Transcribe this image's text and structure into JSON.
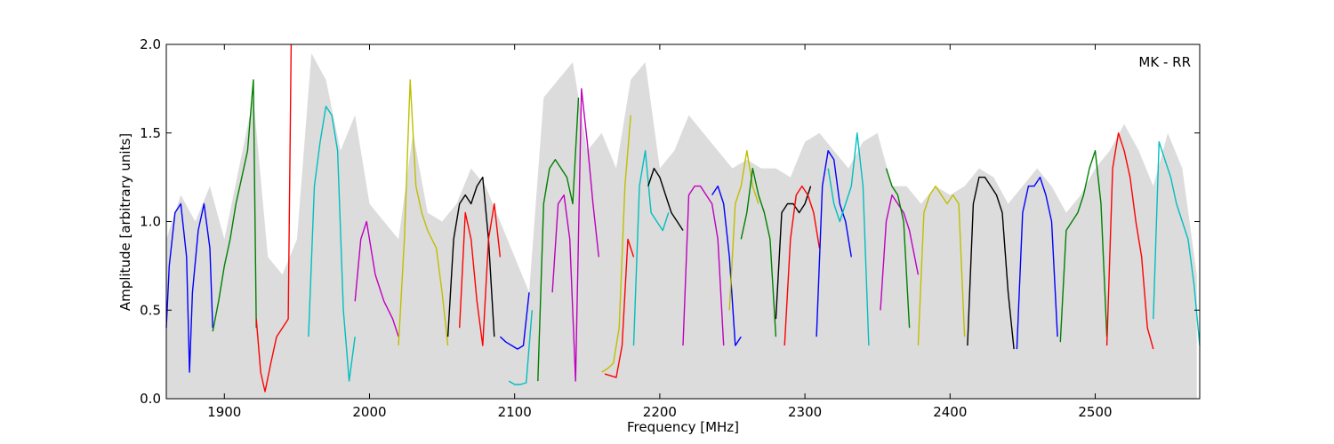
{
  "chart_data": {
    "type": "line",
    "title": "",
    "annotation": "MK - RR",
    "xlabel": "Frequency [MHz]",
    "ylabel": "Amplitude [arbitrary units]",
    "xlim": [
      1860,
      2572
    ],
    "ylim": [
      0.0,
      2.0
    ],
    "xticks": [
      1900,
      2000,
      2100,
      2200,
      2300,
      2400,
      2500
    ],
    "xtick_labels": [
      "1900",
      "2000",
      "2100",
      "2200",
      "2300",
      "2400",
      "2500"
    ],
    "yticks": [
      0.0,
      0.5,
      1.0,
      1.5,
      2.0
    ],
    "ytick_labels": [
      "0.0",
      "0.5",
      "1.0",
      "1.5",
      "2.0"
    ],
    "grid": false,
    "background_envelope_color": "#bfbfbf",
    "series": [
      {
        "color": "#0000ff",
        "x": [
          1860,
          1862,
          1866,
          1870,
          1874,
          1876,
          1878,
          1882,
          1886,
          1890,
          1892
        ],
        "y": [
          0.4,
          0.75,
          1.05,
          1.1,
          0.8,
          0.15,
          0.6,
          0.95,
          1.1,
          0.85,
          0.4
        ]
      },
      {
        "color": "#008000",
        "x": [
          1892,
          1896,
          1900,
          1904,
          1908,
          1912,
          1916,
          1920,
          1922
        ],
        "y": [
          0.38,
          0.55,
          0.75,
          0.9,
          1.1,
          1.25,
          1.4,
          1.8,
          0.4
        ]
      },
      {
        "color": "#ff0000",
        "x": [
          1922,
          1925,
          1928,
          1932,
          1936,
          1940,
          1944,
          1946
        ],
        "y": [
          0.45,
          0.15,
          0.04,
          0.2,
          0.35,
          0.4,
          0.45,
          2.0
        ]
      },
      {
        "color": "#00bfbf",
        "x": [
          1958,
          1962,
          1966,
          1970,
          1974,
          1978,
          1982,
          1986,
          1990
        ],
        "y": [
          0.35,
          1.2,
          1.45,
          1.65,
          1.6,
          1.4,
          0.5,
          0.1,
          0.35
        ]
      },
      {
        "color": "#bf00bf",
        "x": [
          1990,
          1994,
          1998,
          2004,
          2010,
          2016,
          2020
        ],
        "y": [
          0.55,
          0.9,
          1.0,
          0.7,
          0.55,
          0.45,
          0.35
        ]
      },
      {
        "color": "#bfbf00",
        "x": [
          2020,
          2024,
          2028,
          2032,
          2036,
          2040,
          2046,
          2050,
          2054
        ],
        "y": [
          0.3,
          0.9,
          1.8,
          1.2,
          1.05,
          0.95,
          0.85,
          0.6,
          0.3
        ]
      },
      {
        "color": "#000000",
        "x": [
          2054,
          2058,
          2062,
          2066,
          2070,
          2074,
          2078,
          2082,
          2086
        ],
        "y": [
          0.35,
          0.9,
          1.1,
          1.15,
          1.1,
          1.2,
          1.25,
          0.9,
          0.35
        ]
      },
      {
        "color": "#ff0000",
        "x": [
          2062,
          2066,
          2070,
          2074,
          2078,
          2082,
          2086,
          2090
        ],
        "y": [
          0.4,
          1.05,
          0.9,
          0.55,
          0.3,
          0.9,
          1.1,
          0.8
        ]
      },
      {
        "color": "#0000ff",
        "x": [
          2090,
          2094,
          2098,
          2102,
          2106,
          2110
        ],
        "y": [
          0.35,
          0.32,
          0.3,
          0.28,
          0.3,
          0.6
        ]
      },
      {
        "color": "#00bfbf",
        "x": [
          2096,
          2100,
          2104,
          2108,
          2112
        ],
        "y": [
          0.1,
          0.08,
          0.08,
          0.09,
          0.5
        ]
      },
      {
        "color": "#008000",
        "x": [
          2116,
          2120,
          2124,
          2128,
          2132,
          2136,
          2140,
          2144
        ],
        "y": [
          0.1,
          1.1,
          1.3,
          1.35,
          1.3,
          1.25,
          1.1,
          1.7
        ]
      },
      {
        "color": "#bf00bf",
        "x": [
          2126,
          2130,
          2134,
          2138,
          2142,
          2146,
          2150,
          2154,
          2158
        ],
        "y": [
          0.6,
          1.1,
          1.15,
          0.9,
          0.1,
          1.75,
          1.45,
          1.1,
          0.8
        ]
      },
      {
        "color": "#bfbf00",
        "x": [
          2160,
          2164,
          2168,
          2172,
          2176,
          2180
        ],
        "y": [
          0.15,
          0.17,
          0.2,
          0.4,
          1.2,
          1.6
        ]
      },
      {
        "color": "#ff0000",
        "x": [
          2162,
          2166,
          2170,
          2174,
          2178,
          2182
        ],
        "y": [
          0.14,
          0.13,
          0.12,
          0.3,
          0.9,
          0.8
        ]
      },
      {
        "color": "#00bfbf",
        "x": [
          2182,
          2186,
          2190,
          2194,
          2198,
          2202,
          2206
        ],
        "y": [
          0.3,
          1.2,
          1.4,
          1.05,
          1.0,
          0.95,
          1.05
        ]
      },
      {
        "color": "#000000",
        "x": [
          2192,
          2196,
          2200,
          2204,
          2208,
          2212,
          2216
        ],
        "y": [
          1.2,
          1.3,
          1.25,
          1.15,
          1.05,
          1.0,
          0.95
        ]
      },
      {
        "color": "#bf00bf",
        "x": [
          2216,
          2220,
          2224,
          2228,
          2232,
          2236,
          2240,
          2244
        ],
        "y": [
          0.3,
          1.15,
          1.2,
          1.2,
          1.15,
          1.1,
          0.9,
          0.3
        ]
      },
      {
        "color": "#0000ff",
        "x": [
          2236,
          2240,
          2244,
          2248,
          2252,
          2256
        ],
        "y": [
          1.15,
          1.2,
          1.1,
          0.8,
          0.3,
          0.35
        ]
      },
      {
        "color": "#bfbf00",
        "x": [
          2248,
          2252,
          2256,
          2260,
          2264,
          2268
        ],
        "y": [
          0.5,
          1.1,
          1.2,
          1.4,
          1.2,
          1.1
        ]
      },
      {
        "color": "#008000",
        "x": [
          2256,
          2260,
          2264,
          2268,
          2272,
          2276,
          2280
        ],
        "y": [
          0.9,
          1.05,
          1.3,
          1.15,
          1.05,
          0.9,
          0.35
        ]
      },
      {
        "color": "#000000",
        "x": [
          2280,
          2284,
          2288,
          2292,
          2296,
          2300,
          2304
        ],
        "y": [
          0.45,
          1.05,
          1.1,
          1.1,
          1.05,
          1.1,
          1.2
        ]
      },
      {
        "color": "#ff0000",
        "x": [
          2286,
          2290,
          2294,
          2298,
          2302,
          2306,
          2310
        ],
        "y": [
          0.3,
          0.9,
          1.15,
          1.2,
          1.15,
          1.05,
          0.85
        ]
      },
      {
        "color": "#0000ff",
        "x": [
          2308,
          2312,
          2316,
          2320,
          2324,
          2328,
          2332
        ],
        "y": [
          0.35,
          1.2,
          1.4,
          1.35,
          1.1,
          1.0,
          0.8
        ]
      },
      {
        "color": "#00bfbf",
        "x": [
          2316,
          2320,
          2324,
          2328,
          2332,
          2336,
          2340,
          2344
        ],
        "y": [
          1.3,
          1.1,
          1.0,
          1.1,
          1.2,
          1.5,
          1.2,
          0.3
        ]
      },
      {
        "color": "#bf00bf",
        "x": [
          2352,
          2356,
          2360,
          2364,
          2368,
          2372,
          2378
        ],
        "y": [
          0.5,
          1.0,
          1.15,
          1.1,
          1.05,
          0.95,
          0.7
        ]
      },
      {
        "color": "#008000",
        "x": [
          2356,
          2360,
          2364,
          2368,
          2372
        ],
        "y": [
          1.3,
          1.2,
          1.15,
          1.0,
          0.4
        ]
      },
      {
        "color": "#bfbf00",
        "x": [
          2378,
          2382,
          2386,
          2390,
          2394,
          2398,
          2402,
          2406,
          2410
        ],
        "y": [
          0.3,
          1.05,
          1.15,
          1.2,
          1.15,
          1.1,
          1.15,
          1.1,
          0.35
        ]
      },
      {
        "color": "#000000",
        "x": [
          2412,
          2416,
          2420,
          2424,
          2428,
          2432,
          2436,
          2440,
          2444
        ],
        "y": [
          0.3,
          1.1,
          1.25,
          1.25,
          1.2,
          1.15,
          1.05,
          0.6,
          0.28
        ]
      },
      {
        "color": "#0000ff",
        "x": [
          2446,
          2450,
          2454,
          2458,
          2462,
          2466,
          2470,
          2474
        ],
        "y": [
          0.28,
          1.05,
          1.2,
          1.2,
          1.25,
          1.15,
          1.0,
          0.35
        ]
      },
      {
        "color": "#008000",
        "x": [
          2476,
          2480,
          2484,
          2488,
          2492,
          2496,
          2500,
          2504,
          2508
        ],
        "y": [
          0.32,
          0.95,
          1.0,
          1.05,
          1.15,
          1.3,
          1.4,
          1.1,
          0.35
        ]
      },
      {
        "color": "#ff0000",
        "x": [
          2508,
          2512,
          2516,
          2520,
          2524,
          2528,
          2532,
          2536,
          2540
        ],
        "y": [
          0.3,
          1.3,
          1.5,
          1.4,
          1.25,
          1.0,
          0.8,
          0.4,
          0.28
        ]
      },
      {
        "color": "#00bfbf",
        "x": [
          2540,
          2544,
          2548,
          2552,
          2556,
          2560,
          2564,
          2568,
          2572
        ],
        "y": [
          0.45,
          1.45,
          1.35,
          1.25,
          1.1,
          1.0,
          0.9,
          0.65,
          0.3
        ]
      }
    ],
    "background_envelope": {
      "x": [
        1860,
        1870,
        1880,
        1890,
        1900,
        1910,
        1920,
        1930,
        1940,
        1950,
        1960,
        1970,
        1980,
        1990,
        2000,
        2010,
        2020,
        2030,
        2040,
        2050,
        2060,
        2070,
        2080,
        2090,
        2100,
        2110,
        2120,
        2130,
        2140,
        2150,
        2160,
        2170,
        2180,
        2190,
        2200,
        2210,
        2220,
        2230,
        2240,
        2250,
        2260,
        2270,
        2280,
        2290,
        2300,
        2310,
        2320,
        2330,
        2340,
        2350,
        2360,
        2370,
        2380,
        2390,
        2400,
        2410,
        2420,
        2430,
        2440,
        2450,
        2460,
        2470,
        2480,
        2490,
        2500,
        2510,
        2520,
        2530,
        2540,
        2550,
        2560,
        2570
      ],
      "y": [
        0.9,
        1.15,
        1.0,
        1.2,
        0.9,
        1.3,
        1.7,
        0.8,
        0.7,
        0.9,
        1.95,
        1.8,
        1.4,
        1.6,
        1.1,
        1.0,
        0.9,
        1.5,
        1.05,
        1.0,
        1.1,
        1.3,
        1.2,
        1.0,
        0.8,
        0.6,
        1.7,
        1.8,
        1.9,
        1.4,
        1.5,
        1.3,
        1.8,
        1.9,
        1.3,
        1.4,
        1.6,
        1.5,
        1.4,
        1.3,
        1.35,
        1.3,
        1.3,
        1.25,
        1.45,
        1.5,
        1.4,
        1.3,
        1.45,
        1.5,
        1.2,
        1.2,
        1.1,
        1.2,
        1.15,
        1.2,
        1.3,
        1.25,
        1.1,
        1.2,
        1.3,
        1.2,
        1.05,
        1.15,
        1.3,
        1.4,
        1.55,
        1.4,
        1.2,
        1.5,
        1.3,
        0.7
      ]
    }
  }
}
